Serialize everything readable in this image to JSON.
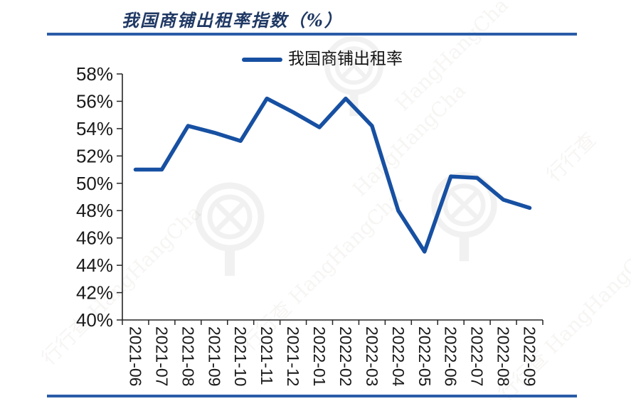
{
  "page": {
    "watermark": {
      "cn": "行行查",
      "en": "HangHangCha"
    }
  },
  "chart_data": {
    "type": "line",
    "title": "我国商铺出租率指数（%）",
    "legend_position": "top-center",
    "grid": false,
    "categories": [
      "2021-06",
      "2021-07",
      "2021-08",
      "2021-09",
      "2021-10",
      "2021-11",
      "2021-12",
      "2022-01",
      "2022-02",
      "2022-03",
      "2022-04",
      "2022-05",
      "2022-06",
      "2022-07",
      "2022-08",
      "2022-09"
    ],
    "series": [
      {
        "name": "我国商铺出租率",
        "values": [
          51,
          51,
          54.2,
          53.7,
          53.1,
          56.2,
          55.2,
          54.1,
          56.2,
          54.2,
          48,
          45,
          50.5,
          50.4,
          48.8,
          48.2
        ]
      }
    ],
    "ylim": [
      40,
      58
    ],
    "ytick_step": 2,
    "ytick_suffix": "%",
    "xlabel": "",
    "ylabel": "",
    "colors": {
      "line": "#1750A2",
      "axis": "#262626",
      "tick_label": "#1a1a1a",
      "title": "#1F3864",
      "rule": "#2A5CA8"
    }
  }
}
